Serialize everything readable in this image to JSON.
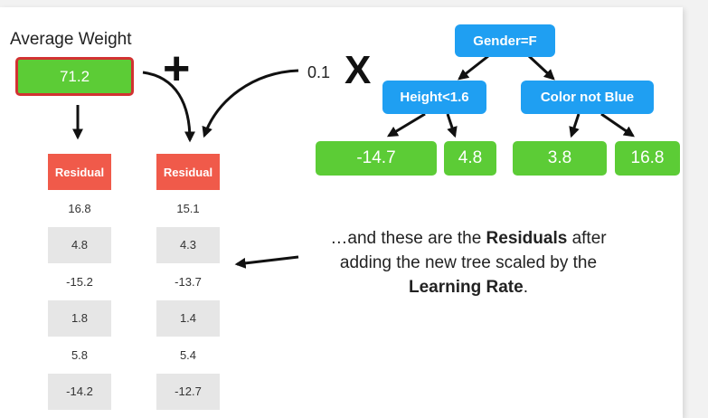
{
  "average": {
    "label": "Average Weight",
    "value": "71.2"
  },
  "plus_sign": "+",
  "learning_rate": {
    "value": "0.1",
    "times": "X"
  },
  "tree": {
    "root": "Gender=F",
    "left_split": "Height<1.6",
    "right_split": "Color not Blue",
    "leaves": [
      "-14.7",
      "4.8",
      "3.8",
      "16.8"
    ]
  },
  "tables": {
    "header": "Residual",
    "old_residuals": [
      "16.8",
      "4.8",
      "-15.2",
      "1.8",
      "5.8",
      "-14.2"
    ],
    "new_residuals": [
      "15.1",
      "4.3",
      "-13.7",
      "1.4",
      "5.4",
      "-12.7"
    ]
  },
  "note": {
    "line1_pre": "…and these are the ",
    "line1_bold": "Residuals",
    "line1_post": " after",
    "line2": "adding the new tree scaled by the",
    "line3_bold": "Learning Rate",
    "line3_post": "."
  },
  "colors": {
    "node": "#1f9ff2",
    "leaf": "#5ccc36",
    "header": "#f05a4a",
    "highlight": "#d23232"
  }
}
